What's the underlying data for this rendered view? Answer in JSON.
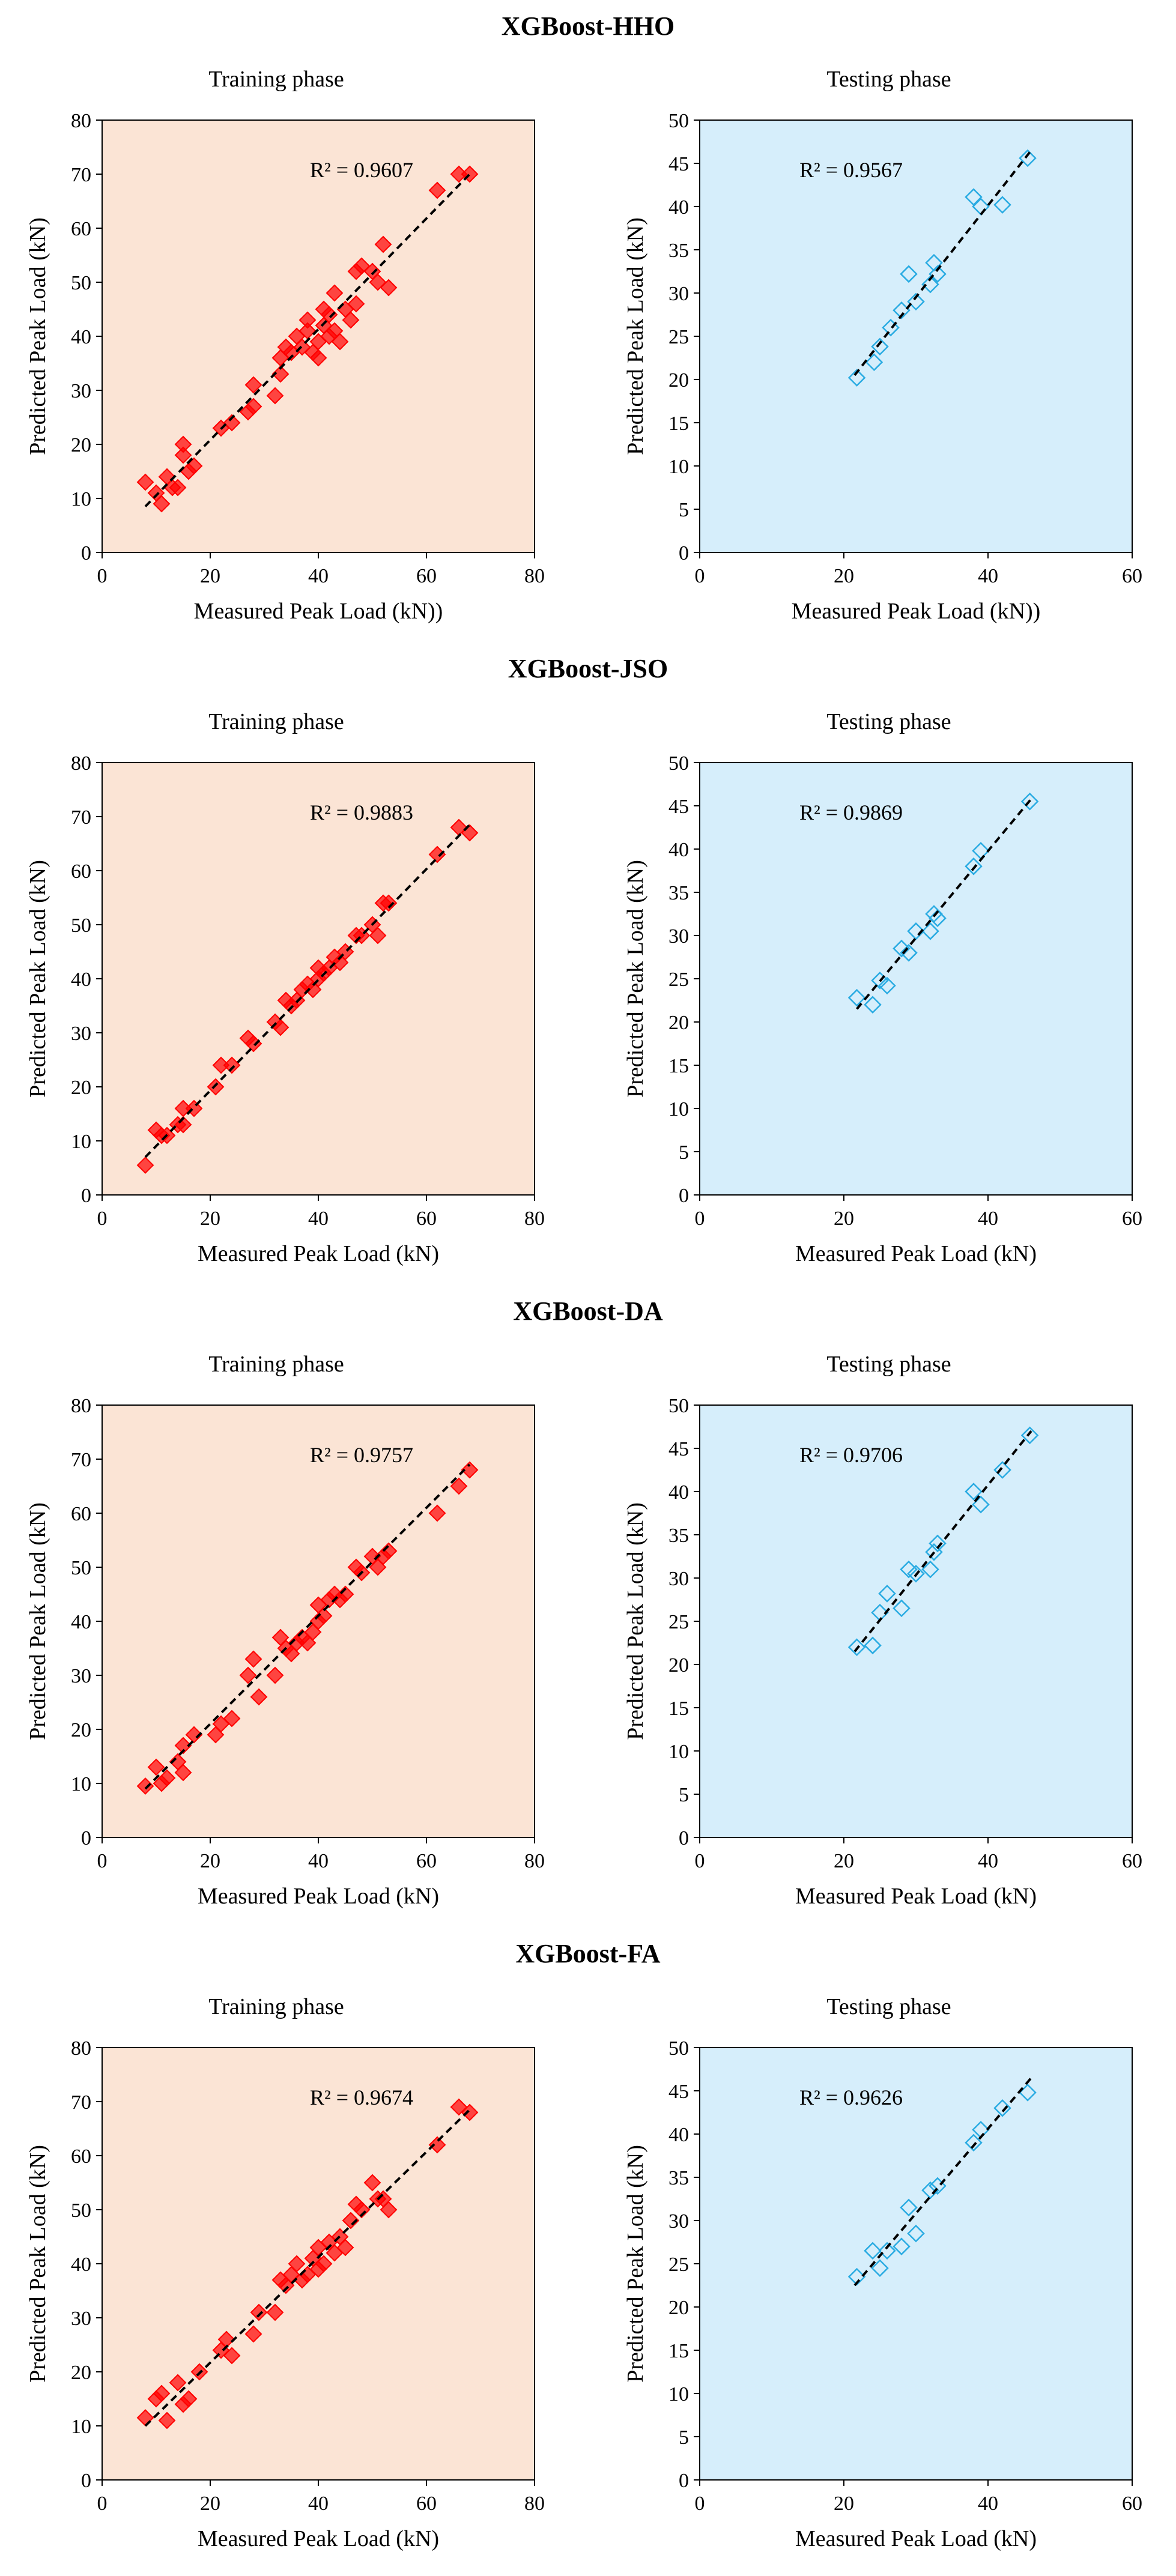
{
  "colors": {
    "train_bg": "#fbe4d5",
    "test_bg": "#d6eefb",
    "train_marker": "#ff0000",
    "test_marker": "#29abe2"
  },
  "groups": [
    {
      "title": "XGBoost-HHO",
      "train_phase": "Training phase",
      "test_phase": "Testing phase"
    },
    {
      "title": "XGBoost-JSO",
      "train_phase": "Training phase",
      "test_phase": "Testing phase"
    },
    {
      "title": "XGBoost-DA",
      "train_phase": "Training phase",
      "test_phase": "Testing phase"
    },
    {
      "title": "XGBoost-FA",
      "train_phase": "Training phase",
      "test_phase": "Testing phase"
    }
  ],
  "chart_data": [
    {
      "type": "scatter",
      "group": "XGBoost-HHO",
      "phase": "Training phase",
      "xlabel": "Measured Peak Load (kN))",
      "ylabel": "Predicted Peak Load (kN)",
      "xlim": [
        0,
        80
      ],
      "ylim": [
        0,
        80
      ],
      "xticks": [
        "0",
        "20",
        "40",
        "60",
        "80"
      ],
      "yticks": [
        "0",
        "10",
        "20",
        "30",
        "40",
        "50",
        "60",
        "70",
        "80"
      ],
      "annotation": "R² = 0.9607",
      "trendline": [
        [
          8,
          8.5
        ],
        [
          68,
          70
        ]
      ],
      "x": [
        8,
        10,
        11,
        12,
        13,
        14,
        15,
        15,
        16,
        17,
        22,
        24,
        27,
        28,
        28,
        32,
        33,
        33,
        34,
        35,
        36,
        37,
        38,
        38,
        39,
        40,
        40,
        41,
        41,
        42,
        42,
        43,
        43,
        44,
        45,
        46,
        47,
        47,
        48,
        50,
        51,
        52,
        53,
        62,
        66,
        68
      ],
      "y": [
        13,
        11,
        9,
        14,
        12,
        12,
        18,
        20,
        15,
        16,
        23,
        24,
        26,
        27,
        31,
        29,
        33,
        36,
        38,
        37,
        40,
        38,
        41,
        43,
        37,
        39,
        36,
        42,
        45,
        44,
        40,
        48,
        41,
        39,
        45,
        43,
        46,
        52,
        53,
        52,
        50,
        57,
        49,
        67,
        70,
        70
      ]
    },
    {
      "type": "scatter",
      "group": "XGBoost-HHO",
      "phase": "Testing phase",
      "xlabel": "Measured Peak Load (kN))",
      "ylabel": "Predicted Peak Load (kN)",
      "xlim": [
        0,
        60
      ],
      "ylim": [
        0,
        50
      ],
      "xticks": [
        "0",
        "20",
        "40",
        "60"
      ],
      "yticks": [
        "0",
        "5",
        "10",
        "15",
        "20",
        "25",
        "30",
        "35",
        "40",
        "45",
        "50"
      ],
      "annotation": "R² = 0.9567",
      "trendline": [
        [
          21.5,
          20.5
        ],
        [
          46,
          46.5
        ]
      ],
      "x": [
        21.8,
        24.2,
        25,
        26.5,
        28,
        29,
        30,
        32,
        32.5,
        33,
        38,
        39,
        42,
        45.5
      ],
      "y": [
        20.2,
        22,
        23.8,
        26,
        28,
        32.2,
        29,
        31,
        33.5,
        32.2,
        41.1,
        40,
        40.2,
        45.6
      ]
    },
    {
      "type": "scatter",
      "group": "XGBoost-JSO",
      "phase": "Training phase",
      "xlabel": "Measured Peak Load (kN)",
      "ylabel": "Predicted Peak Load (kN)",
      "xlim": [
        0,
        80
      ],
      "ylim": [
        0,
        80
      ],
      "xticks": [
        "0",
        "20",
        "40",
        "60",
        "80"
      ],
      "yticks": [
        "0",
        "10",
        "20",
        "30",
        "40",
        "50",
        "60",
        "70",
        "80"
      ],
      "annotation": "R² = 0.9883",
      "trendline": [
        [
          8,
          7
        ],
        [
          68,
          68.5
        ]
      ],
      "x": [
        8,
        10,
        11,
        12,
        14,
        15,
        15,
        17,
        21,
        22,
        24,
        27,
        28,
        32,
        33,
        34,
        35,
        36,
        37,
        38,
        39,
        40,
        40,
        41,
        42,
        43,
        44,
        45,
        47,
        48,
        50,
        51,
        52,
        53,
        62,
        66,
        68
      ],
      "y": [
        5.5,
        12,
        11,
        11,
        13,
        16,
        13,
        16,
        20,
        24,
        24,
        29,
        28,
        32,
        31,
        36,
        35,
        36,
        38,
        39,
        38,
        40,
        42,
        41,
        42,
        44,
        43,
        45,
        48,
        48,
        50,
        48,
        54,
        54,
        63,
        68,
        67
      ]
    },
    {
      "type": "scatter",
      "group": "XGBoost-JSO",
      "phase": "Testing phase",
      "xlabel": "Measured Peak Load (kN)",
      "ylabel": "Predicted Peak Load (kN)",
      "xlim": [
        0,
        60
      ],
      "ylim": [
        0,
        50
      ],
      "xticks": [
        "0",
        "20",
        "40",
        "60"
      ],
      "yticks": [
        "0",
        "5",
        "10",
        "15",
        "20",
        "25",
        "30",
        "35",
        "40",
        "45",
        "50"
      ],
      "annotation": "R² = 0.9869",
      "trendline": [
        [
          21.8,
          21.5
        ],
        [
          46,
          45.8
        ]
      ],
      "x": [
        21.8,
        24,
        25,
        26,
        28,
        29,
        30,
        32,
        32.5,
        33,
        38,
        39,
        45.8
      ],
      "y": [
        22.8,
        22,
        24.8,
        24.2,
        28.5,
        28,
        30.5,
        30.5,
        32.5,
        32,
        38,
        39.8,
        45.5
      ]
    },
    {
      "type": "scatter",
      "group": "XGBoost-DA",
      "phase": "Training phase",
      "xlabel": "Measured Peak Load (kN)",
      "ylabel": "Predicted Peak Load (kN)",
      "xlim": [
        0,
        80
      ],
      "ylim": [
        0,
        80
      ],
      "xticks": [
        "0",
        "20",
        "40",
        "60",
        "80"
      ],
      "yticks": [
        "0",
        "10",
        "20",
        "30",
        "40",
        "50",
        "60",
        "70",
        "80"
      ],
      "annotation": "R² = 0.9757",
      "trendline": [
        [
          8,
          9
        ],
        [
          68,
          69
        ]
      ],
      "x": [
        8,
        10,
        11,
        12,
        14,
        15,
        15,
        17,
        21,
        22,
        24,
        27,
        28,
        29,
        32,
        33,
        34,
        35,
        36,
        37,
        38,
        39,
        40,
        40,
        41,
        42,
        43,
        44,
        45,
        47,
        48,
        50,
        51,
        52,
        53,
        62,
        66,
        68
      ],
      "y": [
        9.5,
        13,
        10,
        11,
        14,
        12,
        17,
        19,
        19,
        21,
        22,
        30,
        33,
        26,
        30,
        37,
        35,
        34,
        36,
        37,
        36,
        38,
        40,
        43,
        41,
        44,
        45,
        44,
        45,
        50,
        49,
        52,
        50,
        52,
        53,
        60,
        65,
        68
      ]
    },
    {
      "type": "scatter",
      "group": "XGBoost-DA",
      "phase": "Testing phase",
      "xlabel": "Measured Peak Load (kN)",
      "ylabel": "Predicted Peak Load (kN)",
      "xlim": [
        0,
        60
      ],
      "ylim": [
        0,
        50
      ],
      "xticks": [
        "0",
        "20",
        "40",
        "60"
      ],
      "yticks": [
        "0",
        "5",
        "10",
        "15",
        "20",
        "25",
        "30",
        "35",
        "40",
        "45",
        "50"
      ],
      "annotation": "R² = 0.9706",
      "trendline": [
        [
          21.5,
          21.5
        ],
        [
          46,
          47
        ]
      ],
      "x": [
        21.8,
        24,
        25,
        26,
        28,
        29,
        30,
        32,
        32.5,
        33,
        38,
        39,
        42,
        45.8
      ],
      "y": [
        22,
        22.2,
        26,
        28.2,
        26.5,
        31,
        30.5,
        31,
        33,
        34,
        40,
        38.5,
        42.5,
        46.5
      ]
    },
    {
      "type": "scatter",
      "group": "XGBoost-FA",
      "phase": "Training phase",
      "xlabel": "Measured Peak Load (kN)",
      "ylabel": "Predicted Peak Load (kN)",
      "xlim": [
        0,
        80
      ],
      "ylim": [
        0,
        80
      ],
      "xticks": [
        "0",
        "20",
        "40",
        "60",
        "80"
      ],
      "yticks": [
        "0",
        "10",
        "20",
        "30",
        "40",
        "50",
        "60",
        "70",
        "80"
      ],
      "annotation": "R² = 0.9674",
      "trendline": [
        [
          8,
          10
        ],
        [
          68,
          68.5
        ]
      ],
      "x": [
        8,
        10,
        11,
        12,
        14,
        15,
        16,
        18,
        22,
        23,
        24,
        28,
        29,
        32,
        33,
        34,
        35,
        36,
        37,
        38,
        39,
        40,
        40,
        41,
        42,
        43,
        44,
        45,
        46,
        47,
        48,
        50,
        51,
        52,
        53,
        62,
        66,
        68
      ],
      "y": [
        11.5,
        15,
        16,
        11,
        18,
        14,
        15,
        20,
        24,
        26,
        23,
        27,
        31,
        31,
        37,
        36,
        38,
        40,
        37,
        38,
        41,
        43,
        39,
        40,
        44,
        42,
        45,
        43,
        48,
        51,
        50,
        55,
        52,
        52,
        50,
        62,
        69,
        68
      ]
    },
    {
      "type": "scatter",
      "group": "XGBoost-FA",
      "phase": "Testing phase",
      "xlabel": "Measured Peak Load (kN)",
      "ylabel": "Predicted Peak Load (kN)",
      "xlim": [
        0,
        60
      ],
      "ylim": [
        0,
        50
      ],
      "xticks": [
        "0",
        "20",
        "40",
        "60"
      ],
      "yticks": [
        "0",
        "5",
        "10",
        "15",
        "20",
        "25",
        "30",
        "35",
        "40",
        "45",
        "50"
      ],
      "annotation": "R² = 0.9626",
      "trendline": [
        [
          21.5,
          22.5
        ],
        [
          46,
          46.5
        ]
      ],
      "x": [
        21.8,
        24,
        25,
        26,
        28,
        29,
        30,
        32,
        33,
        38,
        39,
        42,
        45.5
      ],
      "y": [
        23.5,
        26.5,
        24.5,
        26.5,
        27,
        31.5,
        28.5,
        33.5,
        34,
        39,
        40.5,
        43,
        44.8
      ]
    }
  ]
}
